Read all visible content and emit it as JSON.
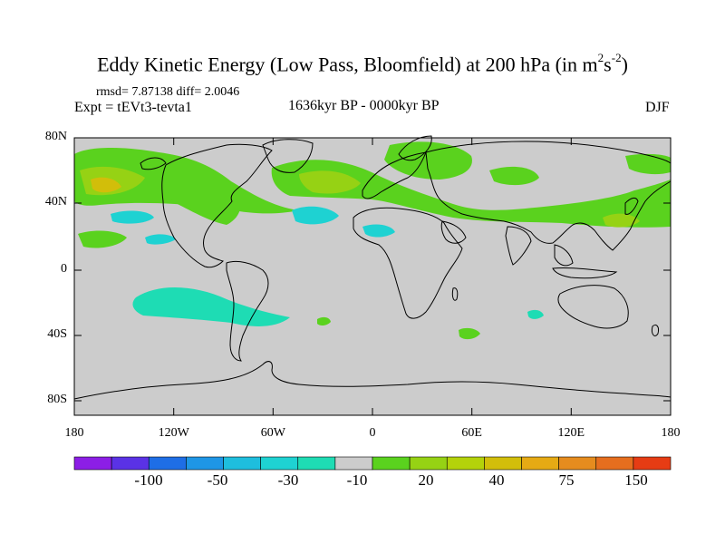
{
  "title": {
    "main": "Eddy Kinetic Energy (Low Pass, Bloomfield) at 200 hPa (in m",
    "sup1": "2",
    "mid": "s",
    "sup2": "-2",
    "close": ")"
  },
  "stats": "rmsd= 7.87138 diff= 2.0046",
  "expt": "Expt = tEVt3-tevta1",
  "period": "1636kyr BP - 0000kyr BP",
  "season": "DJF",
  "lat_labels": [
    "80N",
    "40N",
    "0",
    "40S",
    "80S"
  ],
  "lon_labels": [
    "180",
    "120W",
    "60W",
    "0",
    "60E",
    "120E",
    "180"
  ],
  "colorbar": {
    "labels": [
      "-100",
      "-50",
      "-30",
      "-10",
      "20",
      "40",
      "75",
      "150"
    ],
    "colors": [
      "#8c1ee6",
      "#5a32e6",
      "#1e6ee6",
      "#1e96e6",
      "#1ebede",
      "#1ed2d2",
      "#1edcb4",
      "#cccccc",
      "#5ad21e",
      "#96d214",
      "#b4d20a",
      "#d2be0a",
      "#e6aa14",
      "#e68c1e",
      "#e66e1e",
      "#e63c14"
    ]
  },
  "palette": {
    "ocean": "#cccccc",
    "green": "#5ad21e",
    "light_green": "#96d214",
    "yellow_green": "#b4d20a",
    "gold": "#d2be0a",
    "cyan": "#1ed2d2",
    "teal": "#1edcb4"
  }
}
